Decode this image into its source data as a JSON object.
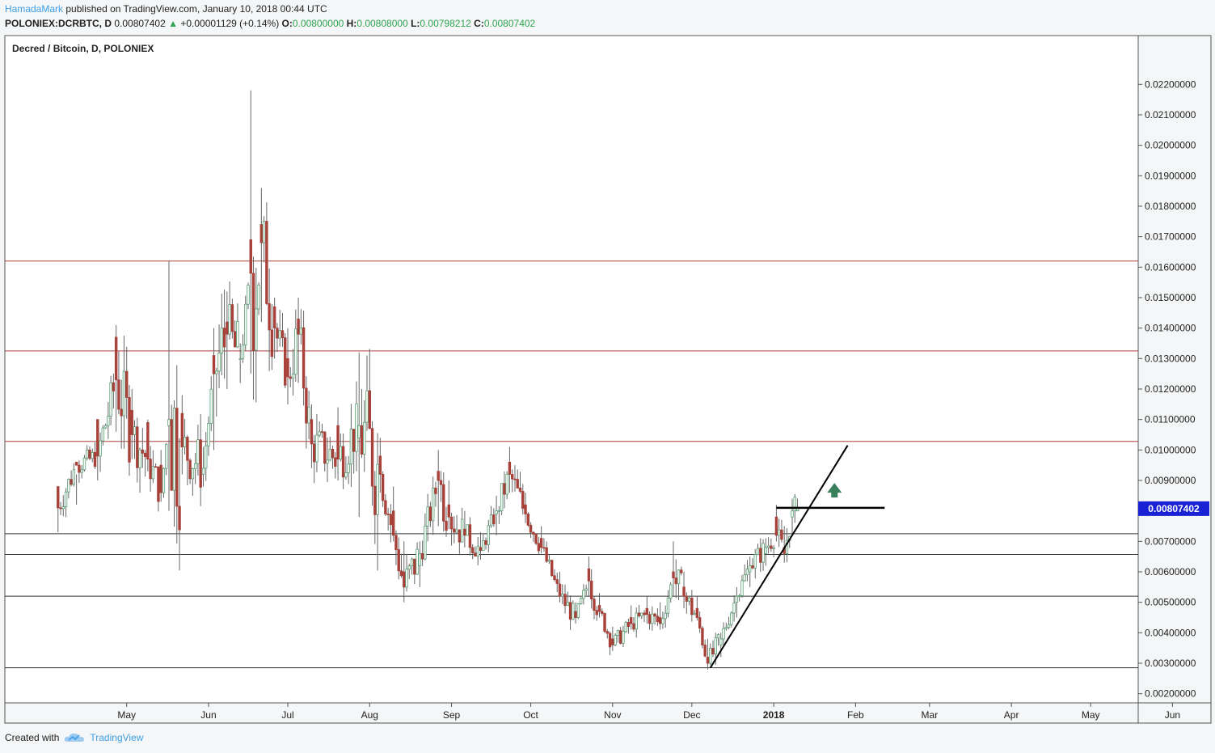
{
  "header": {
    "author": "HamadaMark",
    "published": "published on TradingView.com, January 10, 2018 00:44 UTC",
    "symbol": "POLONIEX:DCRBTC, D",
    "last": "0.00807402",
    "change": "+0.00001129 (+0.14%)",
    "o_label": "O:",
    "o": "0.00800000",
    "h_label": "H:",
    "h": "0.00808000",
    "l_label": "L:",
    "l": "0.00798212",
    "c_label": "C:",
    "c": "0.00807402"
  },
  "footer": {
    "created": "Created with",
    "brand": "TradingView"
  },
  "colors": {
    "up": "#5a9e73",
    "down": "#a8413a",
    "resistance": "#a8413a",
    "support": "#333333",
    "price_badge": "#1a22d6",
    "arrow": "#3a7f5c"
  },
  "icons": {
    "trend_up": "triangle-up-icon",
    "brand_logo": "tradingview-cloud-icon"
  },
  "chart_data": {
    "type": "candlestick",
    "title": "Decred / Bitcoin, D, POLONIEX",
    "y_ticks": [
      "0.02200000",
      "0.02100000",
      "0.02000000",
      "0.01900000",
      "0.01800000",
      "0.01700000",
      "0.01600000",
      "0.01500000",
      "0.01400000",
      "0.01300000",
      "0.01200000",
      "0.01100000",
      "0.01000000",
      "0.00900000",
      "0.00800000",
      "0.00700000",
      "0.00600000",
      "0.00500000",
      "0.00400000",
      "0.00300000",
      "0.00200000"
    ],
    "x_ticks": [
      "May",
      "Jun",
      "Jul",
      "Aug",
      "Sep",
      "Oct",
      "Nov",
      "Dec",
      "2018",
      "Feb",
      "Mar",
      "Apr",
      "May",
      "Jun"
    ],
    "ylim": [
      0.0017,
      0.0236
    ],
    "last_price_label": "0.00807402",
    "horizontal_levels": [
      {
        "value": 0.0162,
        "kind": "resistance"
      },
      {
        "value": 0.01325,
        "kind": "resistance"
      },
      {
        "value": 0.01028,
        "kind": "resistance"
      },
      {
        "value": 0.00725,
        "kind": "support"
      },
      {
        "value": 0.00657,
        "kind": "support"
      },
      {
        "value": 0.0052,
        "kind": "support"
      },
      {
        "value": 0.00285,
        "kind": "support"
      }
    ],
    "trendline": {
      "from": {
        "date": "2017-12-08",
        "value": 0.00285
      },
      "to": {
        "date": "2018-01-29",
        "value": 0.01015
      }
    },
    "breakout_level": {
      "from": "2018-01-02",
      "to": "2018-02-12",
      "value": 0.0081
    },
    "arrow": {
      "date": "2018-01-24",
      "value": 0.0086,
      "direction": "up"
    },
    "series": [
      {
        "ohlc_keyframes": [
          [
            "2017-04-05",
            0.0088,
            0.0085,
            0.0073,
            0.0081
          ],
          [
            "2017-04-12",
            0.0096,
            0.0092,
            0.0082,
            0.0095
          ],
          [
            "2017-04-20",
            0.011,
            0.0109,
            0.009,
            0.0098
          ],
          [
            "2017-04-27",
            0.0137,
            0.0141,
            0.0106,
            0.0123
          ],
          [
            "2017-05-03",
            0.0113,
            0.012,
            0.0097,
            0.0105
          ],
          [
            "2017-05-09",
            0.0109,
            0.011,
            0.0093,
            0.0097
          ],
          [
            "2017-05-14",
            0.0095,
            0.01,
            0.0083,
            0.0086
          ],
          [
            "2017-05-17",
            0.0108,
            0.0162,
            0.008,
            0.011
          ],
          [
            "2017-05-22",
            0.0112,
            0.0118,
            0.0092,
            0.0101
          ],
          [
            "2017-05-30",
            0.0092,
            0.0101,
            0.0088,
            0.0094
          ],
          [
            "2017-06-03",
            0.0131,
            0.014,
            0.01,
            0.0125
          ],
          [
            "2017-06-08",
            0.0142,
            0.0152,
            0.012,
            0.0138
          ],
          [
            "2017-06-13",
            0.013,
            0.0135,
            0.0122,
            0.013
          ],
          [
            "2017-06-17",
            0.0169,
            0.0218,
            0.0125,
            0.0158
          ],
          [
            "2017-06-21",
            0.0174,
            0.0186,
            0.0142,
            0.0168
          ],
          [
            "2017-06-26",
            0.0147,
            0.015,
            0.013,
            0.014
          ],
          [
            "2017-07-01",
            0.013,
            0.014,
            0.0115,
            0.0124
          ],
          [
            "2017-07-05",
            0.0143,
            0.015,
            0.0122,
            0.0138
          ],
          [
            "2017-07-10",
            0.011,
            0.0115,
            0.0094,
            0.0102
          ],
          [
            "2017-07-20",
            0.0108,
            0.0114,
            0.009,
            0.0097
          ],
          [
            "2017-07-28",
            0.0104,
            0.0132,
            0.0078,
            0.0108
          ],
          [
            "2017-08-05",
            0.0098,
            0.0104,
            0.0086,
            0.0092
          ],
          [
            "2017-08-10",
            0.008,
            0.0088,
            0.007,
            0.0072
          ],
          [
            "2017-08-14",
            0.006,
            0.007,
            0.005,
            0.0055
          ],
          [
            "2017-08-20",
            0.0062,
            0.007,
            0.0055,
            0.0066
          ],
          [
            "2017-08-27",
            0.0093,
            0.01,
            0.0075,
            0.009
          ],
          [
            "2017-08-31",
            0.0082,
            0.009,
            0.0074,
            0.0078
          ],
          [
            "2017-09-06",
            0.0074,
            0.008,
            0.0068,
            0.0072
          ],
          [
            "2017-09-12",
            0.0068,
            0.0073,
            0.0064,
            0.0067
          ],
          [
            "2017-09-18",
            0.0079,
            0.0085,
            0.0072,
            0.008
          ],
          [
            "2017-09-23",
            0.0096,
            0.0101,
            0.0086,
            0.0092
          ],
          [
            "2017-09-29",
            0.0082,
            0.0086,
            0.0076,
            0.0079
          ],
          [
            "2017-10-05",
            0.0071,
            0.0075,
            0.0066,
            0.0068
          ],
          [
            "2017-10-12",
            0.0056,
            0.006,
            0.005,
            0.0052
          ],
          [
            "2017-10-18",
            0.0047,
            0.005,
            0.0043,
            0.0045
          ],
          [
            "2017-10-23",
            0.0061,
            0.0065,
            0.0052,
            0.0057
          ],
          [
            "2017-10-27",
            0.0049,
            0.0053,
            0.0045,
            0.0047
          ],
          [
            "2017-11-01",
            0.0038,
            0.0042,
            0.0034,
            0.0036
          ],
          [
            "2017-11-08",
            0.0045,
            0.0049,
            0.0041,
            0.0043
          ],
          [
            "2017-11-14",
            0.0048,
            0.0052,
            0.0043,
            0.0046
          ],
          [
            "2017-11-19",
            0.0045,
            0.005,
            0.0041,
            0.0043
          ],
          [
            "2017-11-24",
            0.006,
            0.007,
            0.0052,
            0.0058
          ],
          [
            "2017-11-28",
            0.0055,
            0.006,
            0.0048,
            0.0052
          ],
          [
            "2017-12-03",
            0.0048,
            0.0052,
            0.0044,
            0.0045
          ],
          [
            "2017-12-07",
            0.0032,
            0.0038,
            0.0028,
            0.003
          ],
          [
            "2017-12-12",
            0.0036,
            0.004,
            0.0032,
            0.0038
          ],
          [
            "2017-12-18",
            0.005,
            0.0055,
            0.0045,
            0.0052
          ],
          [
            "2017-12-23",
            0.006,
            0.0065,
            0.0055,
            0.0062
          ],
          [
            "2017-12-29",
            0.0066,
            0.0071,
            0.0062,
            0.0068
          ],
          [
            "2018-01-02",
            0.0078,
            0.0082,
            0.007,
            0.0072
          ],
          [
            "2018-01-05",
            0.0068,
            0.0075,
            0.0063,
            0.0066
          ],
          [
            "2018-01-08",
            0.0078,
            0.0084,
            0.0072,
            0.008
          ],
          [
            "2018-01-10",
            0.008,
            0.0081,
            0.008,
            0.0081
          ]
        ]
      }
    ]
  }
}
